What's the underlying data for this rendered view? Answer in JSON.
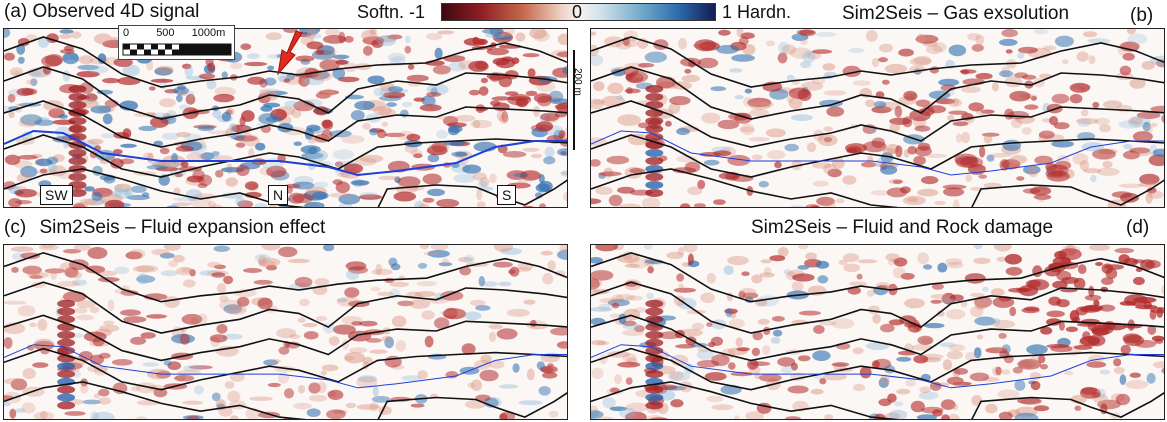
{
  "colorbar": {
    "left_label": "Softn.",
    "min": "-1",
    "mid": "0",
    "max_label": "1 Hardn."
  },
  "panels": [
    {
      "letter": "(a)",
      "title": "Observed 4D signal"
    },
    {
      "letter": "(b)",
      "title": "Sim2Seis – Gas exsolution"
    },
    {
      "letter": "(c)",
      "title": "Sim2Seis – Fluid expansion effect"
    },
    {
      "letter": "(d)",
      "title": "Sim2Seis – Fluid and Rock damage"
    }
  ],
  "scale_bar": {
    "t0": "0",
    "t1": "500",
    "t2": "1000m"
  },
  "vertical_scale": "200 m",
  "markers": [
    "SW",
    "N",
    "S"
  ],
  "colors": {
    "softening": "#b2262a",
    "hardening": "#2660a4",
    "horizon": "#111111",
    "blue_line": "#1f3fd6",
    "arrow": "#e02a1f"
  }
}
